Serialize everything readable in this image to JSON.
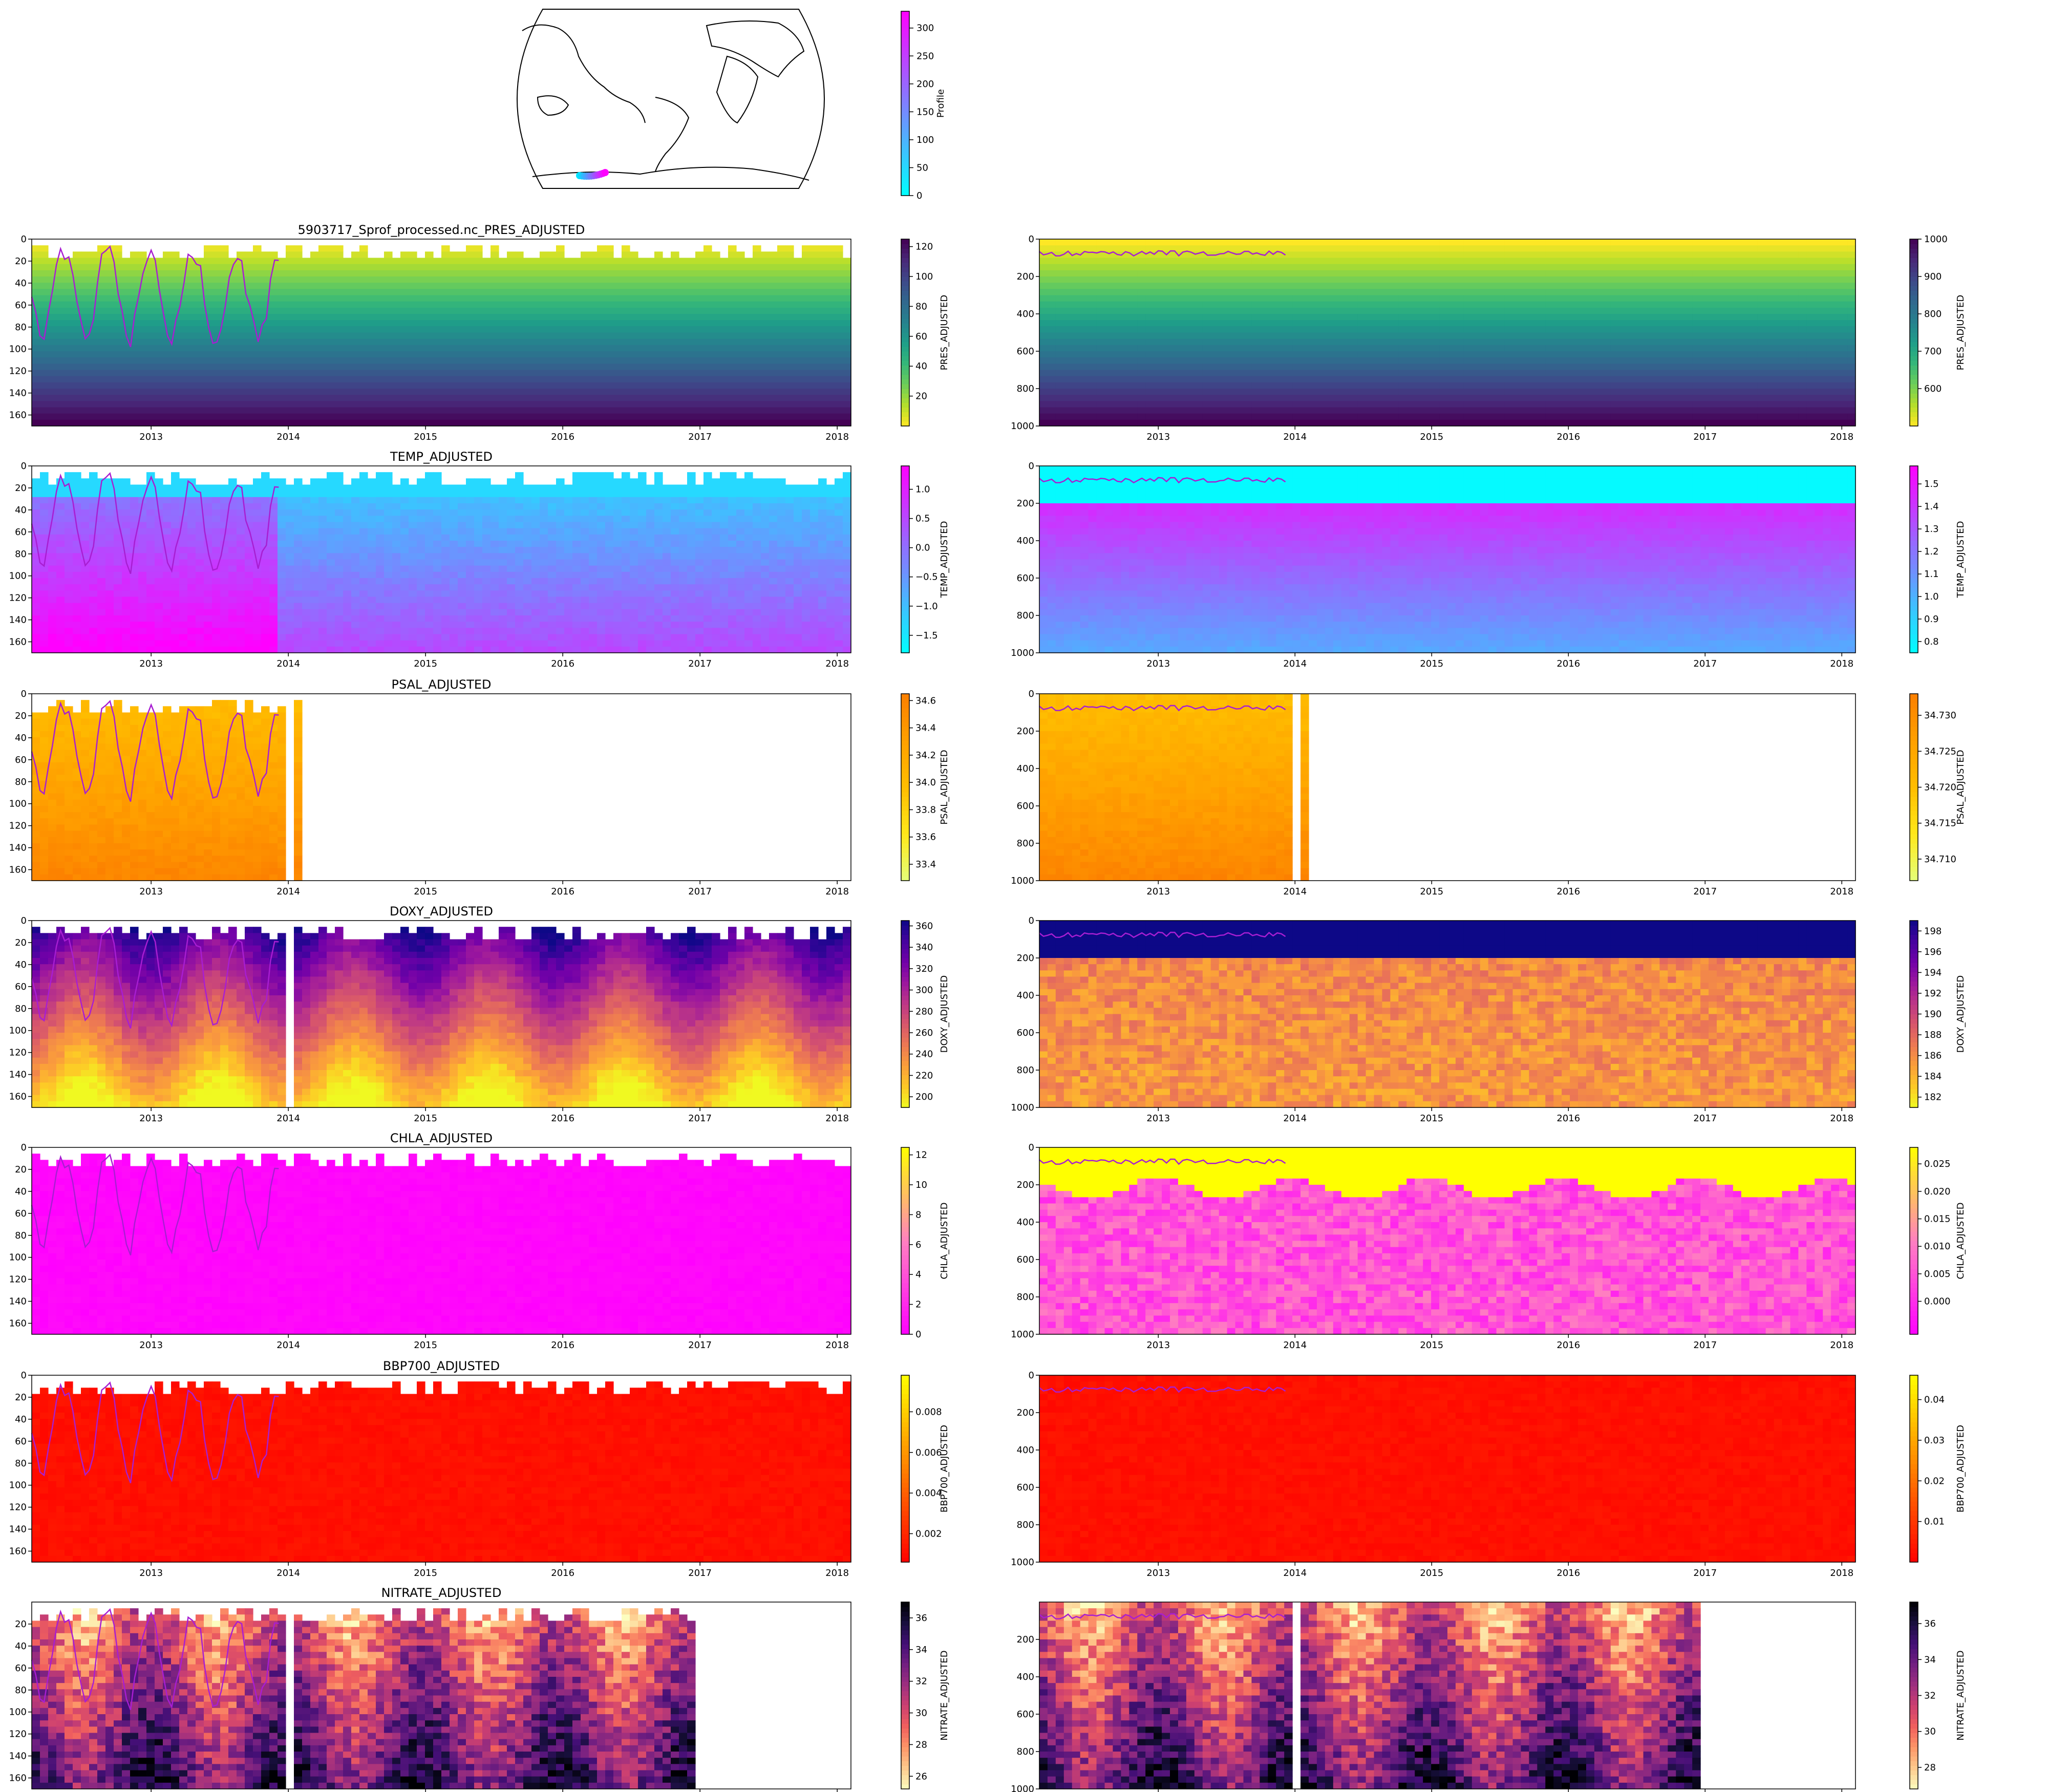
{
  "figure": {
    "map": {
      "colorbar_label": "Profile",
      "colorbar_ticks": [
        "0",
        "50",
        "100",
        "150",
        "200",
        "250",
        "300"
      ],
      "colorbar_range": [
        0,
        330
      ],
      "track_color_start": "#00e5ff",
      "track_color_end": "#ff00ff"
    }
  },
  "colormaps": {
    "viridis_r": [
      "#fde725",
      "#b5de2b",
      "#6ece58",
      "#35b779",
      "#1f9e89",
      "#26828e",
      "#31688e",
      "#3e4989",
      "#482878",
      "#440154"
    ],
    "cool": [
      "#00ffff",
      "#ff00ff"
    ],
    "Wistia": [
      "#e4ff7a",
      "#ffe81a",
      "#ffbd00",
      "#ffa000",
      "#fc7f00"
    ],
    "plasma_r": [
      "#f0f921",
      "#fdca26",
      "#fb9f3a",
      "#ed7953",
      "#d8576b",
      "#bd3786",
      "#9c179e",
      "#7201a8",
      "#46039f",
      "#0d0887"
    ],
    "spring": [
      "#ff00ff",
      "#ff80c0",
      "#ffff00"
    ],
    "autumn": [
      "#ff0000",
      "#ff8000",
      "#ffff00"
    ],
    "magma_r": [
      "#fcfdbf",
      "#feca8d",
      "#fd9668",
      "#f1605d",
      "#cd4071",
      "#9e2f7f",
      "#721f81",
      "#440f76",
      "#180f3d",
      "#000004"
    ]
  },
  "chart_data": [
    {
      "type": "heatmap",
      "variable": "PRES_ADJUSTED",
      "title": "5903717_Sprof_processed.nc_PRES_ADJUSTED",
      "panels": [
        {
          "depth_range": [
            0,
            170
          ],
          "y_ticks": [
            "0",
            "20",
            "40",
            "60",
            "80",
            "100",
            "120",
            "140",
            "160"
          ],
          "colorbar_label": "PRES_ADJUSTED",
          "colorbar_ticks": [
            "20",
            "40",
            "60",
            "80",
            "100",
            "120"
          ],
          "colorbar_range": [
            0,
            125
          ],
          "colormap": "viridis_r"
        },
        {
          "depth_range": [
            0,
            1000
          ],
          "y_ticks": [
            "0",
            "200",
            "400",
            "600",
            "800",
            "1000"
          ],
          "colorbar_label": "PRES_ADJUSTED",
          "colorbar_ticks": [
            "600",
            "700",
            "800",
            "900",
            "1000"
          ],
          "colorbar_range": [
            500,
            1000
          ],
          "colormap": "viridis_r"
        }
      ]
    },
    {
      "type": "heatmap",
      "variable": "TEMP_ADJUSTED",
      "title": "TEMP_ADJUSTED",
      "panels": [
        {
          "depth_range": [
            0,
            170
          ],
          "y_ticks": [
            "0",
            "20",
            "40",
            "60",
            "80",
            "100",
            "120",
            "140",
            "160"
          ],
          "colorbar_label": "TEMP_ADJUSTED",
          "colorbar_ticks": [
            "−1.5",
            "−1.0",
            "−0.5",
            "0.0",
            "0.5",
            "1.0"
          ],
          "colorbar_range": [
            -1.8,
            1.4
          ],
          "colormap": "cool"
        },
        {
          "depth_range": [
            0,
            1000
          ],
          "y_ticks": [
            "0",
            "200",
            "400",
            "600",
            "800",
            "1000"
          ],
          "colorbar_label": "TEMP_ADJUSTED",
          "colorbar_ticks": [
            "0.8",
            "0.9",
            "1.0",
            "1.1",
            "1.2",
            "1.3",
            "1.4",
            "1.5"
          ],
          "colorbar_range": [
            0.75,
            1.58
          ],
          "colormap": "cool"
        }
      ]
    },
    {
      "type": "heatmap",
      "variable": "PSAL_ADJUSTED",
      "title": "PSAL_ADJUSTED",
      "panels": [
        {
          "depth_range": [
            0,
            170
          ],
          "y_ticks": [
            "0",
            "20",
            "40",
            "60",
            "80",
            "100",
            "120",
            "140",
            "160"
          ],
          "colorbar_label": "PSAL_ADJUSTED",
          "colorbar_ticks": [
            "33.4",
            "33.6",
            "33.8",
            "34.0",
            "34.2",
            "34.4",
            "34.6"
          ],
          "colorbar_range": [
            33.28,
            34.65
          ],
          "colormap": "Wistia"
        },
        {
          "depth_range": [
            0,
            1000
          ],
          "y_ticks": [
            "0",
            "200",
            "400",
            "600",
            "800",
            "1000"
          ],
          "colorbar_label": "PSAL_ADJUSTED",
          "colorbar_ticks": [
            "34.710",
            "34.715",
            "34.720",
            "34.725",
            "34.730"
          ],
          "colorbar_range": [
            34.707,
            34.733
          ],
          "colormap": "Wistia"
        }
      ]
    },
    {
      "type": "heatmap",
      "variable": "DOXY_ADJUSTED",
      "title": "DOXY_ADJUSTED",
      "panels": [
        {
          "depth_range": [
            0,
            170
          ],
          "y_ticks": [
            "0",
            "20",
            "40",
            "60",
            "80",
            "100",
            "120",
            "140",
            "160"
          ],
          "colorbar_label": "DOXY_ADJUSTED",
          "colorbar_ticks": [
            "200",
            "220",
            "240",
            "260",
            "280",
            "300",
            "320",
            "340",
            "360"
          ],
          "colorbar_range": [
            190,
            365
          ],
          "colormap": "plasma_r"
        },
        {
          "depth_range": [
            0,
            1000
          ],
          "y_ticks": [
            "0",
            "200",
            "400",
            "600",
            "800",
            "1000"
          ],
          "colorbar_label": "DOXY_ADJUSTED",
          "colorbar_ticks": [
            "182",
            "184",
            "186",
            "188",
            "190",
            "192",
            "194",
            "196",
            "198"
          ],
          "colorbar_range": [
            181,
            199
          ],
          "colormap": "plasma_r"
        }
      ]
    },
    {
      "type": "heatmap",
      "variable": "CHLA_ADJUSTED",
      "title": "CHLA_ADJUSTED",
      "panels": [
        {
          "depth_range": [
            0,
            170
          ],
          "y_ticks": [
            "0",
            "20",
            "40",
            "60",
            "80",
            "100",
            "120",
            "140",
            "160"
          ],
          "colorbar_label": "CHLA_ADJUSTED",
          "colorbar_ticks": [
            "0",
            "2",
            "4",
            "6",
            "8",
            "10",
            "12"
          ],
          "colorbar_range": [
            0,
            12.5
          ],
          "colormap": "spring"
        },
        {
          "depth_range": [
            0,
            1000
          ],
          "y_ticks": [
            "0",
            "200",
            "400",
            "600",
            "800",
            "1000"
          ],
          "colorbar_label": "CHLA_ADJUSTED",
          "colorbar_ticks": [
            "0.000",
            "0.005",
            "0.010",
            "0.015",
            "0.020",
            "0.025"
          ],
          "colorbar_range": [
            -0.006,
            0.028
          ],
          "colormap": "spring"
        }
      ]
    },
    {
      "type": "heatmap",
      "variable": "BBP700_ADJUSTED",
      "title": "BBP700_ADJUSTED",
      "panels": [
        {
          "depth_range": [
            0,
            170
          ],
          "y_ticks": [
            "0",
            "20",
            "40",
            "60",
            "80",
            "100",
            "120",
            "140",
            "160"
          ],
          "colorbar_label": "BBP700_ADJUSTED",
          "colorbar_ticks": [
            "0.002",
            "0.004",
            "0.006",
            "0.008"
          ],
          "colorbar_range": [
            0.0006,
            0.0098
          ],
          "colormap": "autumn"
        },
        {
          "depth_range": [
            0,
            1000
          ],
          "y_ticks": [
            "0",
            "200",
            "400",
            "600",
            "800",
            "1000"
          ],
          "colorbar_label": "BBP700_ADJUSTED",
          "colorbar_ticks": [
            "0.01",
            "0.02",
            "0.03",
            "0.04"
          ],
          "colorbar_range": [
            0.0,
            0.046
          ],
          "colormap": "autumn"
        }
      ]
    },
    {
      "type": "heatmap",
      "variable": "NITRATE_ADJUSTED",
      "title": "NITRATE_ADJUSTED",
      "panels": [
        {
          "depth_range": [
            0,
            170
          ],
          "y_ticks": [
            "20",
            "40",
            "60",
            "80",
            "100",
            "120",
            "140",
            "160"
          ],
          "colorbar_label": "NITRATE_ADJUSTED",
          "colorbar_ticks": [
            "26",
            "28",
            "30",
            "32",
            "34",
            "36"
          ],
          "colorbar_range": [
            25.2,
            37.0
          ],
          "colormap": "magma_r"
        },
        {
          "depth_range": [
            0,
            1000
          ],
          "y_ticks": [
            "200",
            "400",
            "600",
            "800",
            "1000"
          ],
          "colorbar_label": "NITRATE_ADJUSTED",
          "colorbar_ticks": [
            "28",
            "30",
            "32",
            "34",
            "36"
          ],
          "colorbar_range": [
            26.8,
            37.2
          ],
          "colormap": "magma_r"
        }
      ]
    }
  ],
  "time_axis": {
    "range": [
      2012.13,
      2018.1
    ],
    "ticks": [
      "2013",
      "2014",
      "2015",
      "2016",
      "2017",
      "2018"
    ]
  },
  "mixed_layer_line_color": "#a81ed2"
}
